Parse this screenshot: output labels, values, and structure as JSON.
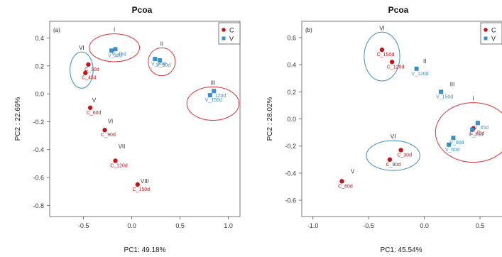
{
  "chart_data": [
    {
      "type": "scatter",
      "title": "Pcoa",
      "panel_label": "(a)",
      "xlabel": "PC1: 49.18%",
      "ylabel": "PC2 : 22.69%",
      "xlim": [
        -0.85,
        1.12
      ],
      "ylim": [
        -0.88,
        0.52
      ],
      "xticks": [
        -0.5,
        0.0,
        0.5,
        1.0
      ],
      "xtick_labels": [
        "-0.5",
        "0.0",
        "0.5",
        "1.0"
      ],
      "yticks": [
        -0.8,
        -0.6,
        -0.4,
        -0.2,
        0.0,
        0.2,
        0.4
      ],
      "ytick_labels": [
        "-0.8",
        "-0.6",
        "-0.4",
        "-0.2",
        "0.0",
        "0.2",
        "0.4"
      ],
      "grid": false,
      "legend": {
        "position": "top-right",
        "entries": [
          "C",
          "V"
        ]
      },
      "series": [
        {
          "name": "C",
          "color": "#c0161c",
          "marker": "circle",
          "points": [
            {
              "label": "C_30d",
              "x": -0.45,
              "y": 0.21
            },
            {
              "label": "C_45d",
              "x": -0.48,
              "y": 0.15
            },
            {
              "label": "C_60d",
              "x": -0.43,
              "y": -0.1
            },
            {
              "label": "C_90d",
              "x": -0.28,
              "y": -0.26
            },
            {
              "label": "C_120d",
              "x": -0.17,
              "y": -0.48
            },
            {
              "label": "C_150d",
              "x": 0.06,
              "y": -0.65
            }
          ]
        },
        {
          "name": "V",
          "color": "#3d8dc6",
          "marker": "square",
          "points": [
            {
              "label": "V_30d",
              "x": -0.21,
              "y": 0.31
            },
            {
              "label": "V_45d",
              "x": -0.17,
              "y": 0.32
            },
            {
              "label": "V_60d",
              "x": 0.24,
              "y": 0.25
            },
            {
              "label": "V_90d",
              "x": 0.29,
              "y": 0.24
            },
            {
              "label": "V_150d",
              "x": 0.81,
              "y": -0.01
            },
            {
              "label": "V_120d",
              "x": 0.85,
              "y": 0.02
            }
          ]
        }
      ],
      "groups": [
        {
          "numeral": "I",
          "shape": "ellipse",
          "color": "#d9353a",
          "cx": -0.18,
          "cy": 0.33,
          "rx": 0.26,
          "ry": 0.1
        },
        {
          "numeral": "II",
          "shape": "ellipse",
          "color": "#d9353a",
          "cx": 0.31,
          "cy": 0.23,
          "rx": 0.14,
          "ry": 0.1
        },
        {
          "numeral": "III",
          "shape": "ellipse",
          "color": "#d9353a",
          "cx": 0.84,
          "cy": -0.07,
          "rx": 0.27,
          "ry": 0.12
        },
        {
          "numeral": "VI",
          "shape": "ellipse",
          "color": "#3d8dc6",
          "cx": -0.52,
          "cy": 0.17,
          "rx": 0.12,
          "ry": 0.13
        },
        {
          "numeral": "V",
          "shape": "none",
          "x": -0.41,
          "y": -0.06
        },
        {
          "numeral": "VI",
          "shape": "none",
          "x": -0.25,
          "y": -0.21
        },
        {
          "numeral": "VII",
          "shape": "none",
          "x": -0.14,
          "y": -0.39
        },
        {
          "numeral": "VIII",
          "shape": "none",
          "x": 0.09,
          "y": -0.64
        }
      ]
    },
    {
      "type": "scatter",
      "title": "Pcoa",
      "panel_label": "(b)",
      "xlabel": "PC1: 45.54%",
      "ylabel": "PC2 : 28.02%",
      "xlim": [
        -1.1,
        0.78
      ],
      "ylim": [
        -0.72,
        0.72
      ],
      "xticks": [
        -1.0,
        -0.5,
        0.0,
        0.5
      ],
      "xtick_labels": [
        "-1.0",
        "-0.5",
        "0.0",
        "0.5"
      ],
      "yticks": [
        -0.6,
        -0.4,
        -0.2,
        0.0,
        0.2,
        0.4,
        0.6
      ],
      "ytick_labels": [
        "-0.6",
        "-0.4",
        "-0.2",
        "0.0",
        "0.2",
        "0.4",
        "0.6"
      ],
      "grid": false,
      "legend": {
        "position": "top-right",
        "entries": [
          "C",
          "V"
        ]
      },
      "series": [
        {
          "name": "C",
          "color": "#c0161c",
          "marker": "circle",
          "points": [
            {
              "label": "C_150d",
              "x": -0.38,
              "y": 0.51
            },
            {
              "label": "C_120d",
              "x": -0.29,
              "y": 0.42
            },
            {
              "label": "C_30d",
              "x": -0.21,
              "y": -0.23
            },
            {
              "label": "C_90d",
              "x": -0.31,
              "y": -0.3
            },
            {
              "label": "C_60d",
              "x": -0.74,
              "y": -0.46
            },
            {
              "label": "C_45d",
              "x": 0.44,
              "y": -0.07
            }
          ]
        },
        {
          "name": "V",
          "color": "#3d8dc6",
          "marker": "square",
          "points": [
            {
              "label": "V_120d",
              "x": -0.07,
              "y": 0.37
            },
            {
              "label": "V_150d",
              "x": 0.15,
              "y": 0.2
            },
            {
              "label": "V_45d",
              "x": 0.48,
              "y": -0.03
            },
            {
              "label": "V_30d",
              "x": 0.43,
              "y": -0.08
            },
            {
              "label": "V_90d",
              "x": 0.26,
              "y": -0.14
            },
            {
              "label": "V_60d",
              "x": 0.22,
              "y": -0.19
            }
          ]
        }
      ],
      "groups": [
        {
          "numeral": "VI",
          "shape": "ellipse",
          "color": "#3d8dc6",
          "cx": -0.38,
          "cy": 0.46,
          "rx": 0.16,
          "ry": 0.18
        },
        {
          "numeral": "VI",
          "shape": "ellipse",
          "color": "#3d8dc6",
          "cx": -0.28,
          "cy": -0.27,
          "rx": 0.24,
          "ry": 0.11
        },
        {
          "numeral": "I",
          "shape": "ellipse",
          "color": "#d9353a",
          "cx": 0.44,
          "cy": -0.1,
          "rx": 0.34,
          "ry": 0.22
        },
        {
          "numeral": "II",
          "shape": "none",
          "x": -0.01,
          "y": 0.41
        },
        {
          "numeral": "III",
          "shape": "none",
          "x": 0.23,
          "y": 0.24
        },
        {
          "numeral": "V",
          "shape": "none",
          "x": -0.66,
          "y": -0.4
        }
      ]
    }
  ]
}
